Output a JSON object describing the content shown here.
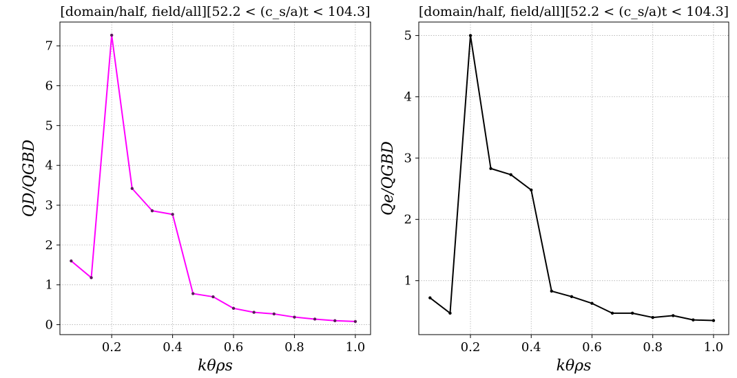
{
  "chart_data": [
    {
      "type": "line",
      "title": "[domain/half, field/all][52.2 < (c_s/a)t < 104.3]",
      "xlabel": "kθρs",
      "ylabel": "QD/QGBD",
      "xlim": [
        0.03,
        1.05
      ],
      "ylim": [
        -0.25,
        7.6
      ],
      "xticks": [
        "0.2",
        "0.4",
        "0.6",
        "0.8",
        "1.0"
      ],
      "yticks": [
        "0",
        "1",
        "2",
        "3",
        "4",
        "5",
        "6",
        "7"
      ],
      "grid": true,
      "color": "#ff00ff",
      "series": [
        {
          "x": [
            0.067,
            0.133,
            0.2,
            0.267,
            0.333,
            0.4,
            0.467,
            0.533,
            0.6,
            0.667,
            0.733,
            0.8,
            0.867,
            0.933,
            1.0
          ],
          "y": [
            1.6,
            1.18,
            7.27,
            3.42,
            2.86,
            2.77,
            0.78,
            0.7,
            0.41,
            0.31,
            0.27,
            0.19,
            0.14,
            0.1,
            0.08
          ]
        }
      ]
    },
    {
      "type": "line",
      "title": "[domain/half, field/all][52.2 < (c_s/a)t < 104.3]",
      "xlabel": "kθρs",
      "ylabel": "Qe/QGBD",
      "xlim": [
        0.03,
        1.05
      ],
      "ylim": [
        0.12,
        5.22
      ],
      "xticks": [
        "0.2",
        "0.4",
        "0.6",
        "0.8",
        "1.0"
      ],
      "yticks": [
        "1",
        "2",
        "3",
        "4",
        "5"
      ],
      "grid": true,
      "color": "#000000",
      "series": [
        {
          "x": [
            0.067,
            0.133,
            0.2,
            0.267,
            0.333,
            0.4,
            0.467,
            0.533,
            0.6,
            0.667,
            0.733,
            0.8,
            0.867,
            0.933,
            1.0
          ],
          "y": [
            0.72,
            0.47,
            5.0,
            2.83,
            2.73,
            2.48,
            0.83,
            0.74,
            0.63,
            0.47,
            0.47,
            0.4,
            0.43,
            0.36,
            0.35
          ]
        }
      ]
    }
  ]
}
